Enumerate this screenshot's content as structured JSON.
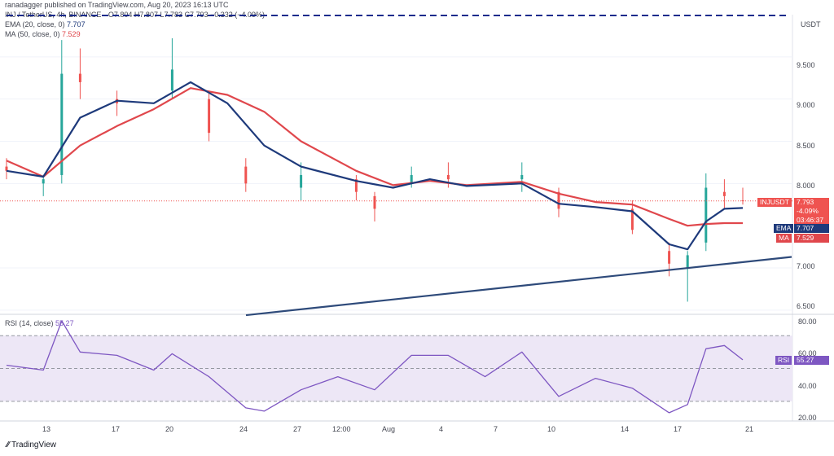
{
  "header": {
    "publisher": "ranadagger published on TradingView.com, Aug 20, 2023 16:13 UTC",
    "symbol_line": "INJ / TetherUS, 4h, BINANCE",
    "ohlc": "O7.804 H7.807 L7.783 C7.793 −0.332 (−4.09%)",
    "ema_label": "EMA (20, close, 0)",
    "ema_value": "7.707",
    "ma_label": "MA (50, close, 0)",
    "ma_value": "7.529",
    "rsi_label": "RSI (14, close)",
    "rsi_value": "55.27"
  },
  "price_axis": {
    "currency": "USDT",
    "ticks": [
      "9.500",
      "9.000",
      "8.500",
      "8.000",
      "7.000",
      "6.500"
    ]
  },
  "rsi_axis": {
    "ticks": [
      "80.00",
      "60.00",
      "40.00",
      "20.00"
    ]
  },
  "time_axis": {
    "ticks": [
      "13",
      "17",
      "20",
      "24",
      "27",
      "12:00",
      "Aug",
      "4",
      "7",
      "10",
      "14",
      "17",
      "21"
    ]
  },
  "tags": {
    "symbol": "INJUSDT",
    "price": "7.793",
    "change": "-4.09%",
    "countdown": "03:46:37",
    "ema_name": "EMA",
    "ema_value": "7.707",
    "ma_name": "MA",
    "ma_value": "7.529",
    "rsi_name": "RSI",
    "rsi_value": "55.27"
  },
  "branding": {
    "logo_text": "TradingView"
  },
  "colors": {
    "up": "#26a69a",
    "down": "#ef5350",
    "ema": "#1e3a7b",
    "ma": "#e0474c",
    "trendline": "#2e4a7a",
    "resistance": "#1a2b8c",
    "rsi": "#7e57c2",
    "rsi_band": "#ede7f6"
  },
  "chart_data": [
    {
      "type": "candlestick",
      "symbol": "INJUSDT",
      "interval": "4h",
      "ylim": [
        6.45,
        10.0
      ],
      "series": [
        {
          "name": "EMA (20, close, 0)",
          "x": [
            "Jul 11",
            "Jul 13",
            "Jul 15",
            "Jul 17",
            "Jul 19",
            "Jul 21",
            "Jul 23",
            "Jul 25",
            "Jul 27",
            "Jul 30",
            "Aug 1",
            "Aug 3",
            "Aug 5",
            "Aug 8",
            "Aug 10",
            "Aug 12",
            "Aug 14",
            "Aug 16",
            "Aug 17",
            "Aug 18",
            "Aug 19",
            "Aug 20"
          ],
          "values": [
            8.15,
            8.08,
            8.78,
            8.98,
            8.95,
            9.2,
            8.95,
            8.45,
            8.2,
            8.03,
            7.95,
            8.05,
            7.97,
            8.0,
            7.76,
            7.72,
            7.67,
            7.28,
            7.22,
            7.55,
            7.7,
            7.71
          ]
        },
        {
          "name": "MA (50, close, 0)",
          "x": [
            "Jul 11",
            "Jul 13",
            "Jul 15",
            "Jul 17",
            "Jul 19",
            "Jul 21",
            "Jul 23",
            "Jul 25",
            "Jul 27",
            "Jul 30",
            "Aug 1",
            "Aug 3",
            "Aug 5",
            "Aug 8",
            "Aug 10",
            "Aug 12",
            "Aug 14",
            "Aug 16",
            "Aug 17",
            "Aug 18",
            "Aug 19",
            "Aug 20"
          ],
          "values": [
            8.27,
            8.08,
            8.45,
            8.68,
            8.88,
            9.13,
            9.05,
            8.85,
            8.5,
            8.15,
            7.98,
            8.03,
            7.98,
            8.02,
            7.88,
            7.78,
            7.75,
            7.58,
            7.5,
            7.52,
            7.53,
            7.53
          ]
        },
        {
          "name": "Trendline",
          "x": [
            "Jul 23",
            "Aug 20"
          ],
          "values": [
            6.44,
            7.13
          ]
        },
        {
          "name": "Resistance",
          "x": [
            "Jul 11",
            "Aug 20"
          ],
          "values": [
            9.99,
            9.99
          ]
        }
      ],
      "ohlc_sample": [
        {
          "x": "Jul 11",
          "o": 8.2,
          "h": 8.3,
          "l": 8.05,
          "c": 8.15
        },
        {
          "x": "Jul 13",
          "o": 8.0,
          "h": 8.1,
          "l": 7.85,
          "c": 8.05
        },
        {
          "x": "Jul 14",
          "o": 8.1,
          "h": 9.7,
          "l": 8.0,
          "c": 9.3
        },
        {
          "x": "Jul 15",
          "o": 9.3,
          "h": 9.6,
          "l": 9.0,
          "c": 9.2
        },
        {
          "x": "Jul 17",
          "o": 9.0,
          "h": 9.1,
          "l": 8.8,
          "c": 8.95
        },
        {
          "x": "Jul 20",
          "o": 9.1,
          "h": 9.72,
          "l": 9.0,
          "c": 9.35
        },
        {
          "x": "Jul 22",
          "o": 9.0,
          "h": 9.1,
          "l": 8.5,
          "c": 8.6
        },
        {
          "x": "Jul 24",
          "o": 8.2,
          "h": 8.3,
          "l": 7.9,
          "c": 8.0
        },
        {
          "x": "Jul 27",
          "o": 7.95,
          "h": 8.25,
          "l": 7.8,
          "c": 8.1
        },
        {
          "x": "Jul 30",
          "o": 8.05,
          "h": 8.1,
          "l": 7.8,
          "c": 7.9
        },
        {
          "x": "Jul 31",
          "o": 7.85,
          "h": 7.9,
          "l": 7.55,
          "c": 7.7
        },
        {
          "x": "Aug 2",
          "o": 8.0,
          "h": 8.2,
          "l": 7.95,
          "c": 8.1
        },
        {
          "x": "Aug 4",
          "o": 8.1,
          "h": 8.25,
          "l": 7.95,
          "c": 8.05
        },
        {
          "x": "Aug 8",
          "o": 8.05,
          "h": 8.25,
          "l": 7.9,
          "c": 8.1
        },
        {
          "x": "Aug 10",
          "o": 7.9,
          "h": 7.95,
          "l": 7.6,
          "c": 7.7
        },
        {
          "x": "Aug 14",
          "o": 7.7,
          "h": 7.8,
          "l": 7.4,
          "c": 7.45
        },
        {
          "x": "Aug 16",
          "o": 7.2,
          "h": 7.3,
          "l": 6.9,
          "c": 7.05
        },
        {
          "x": "Aug 17",
          "o": 7.0,
          "h": 7.2,
          "l": 6.6,
          "c": 7.15
        },
        {
          "x": "Aug 18",
          "o": 7.3,
          "h": 8.12,
          "l": 7.2,
          "c": 7.95
        },
        {
          "x": "Aug 19",
          "o": 7.9,
          "h": 8.05,
          "l": 7.7,
          "c": 7.85
        },
        {
          "x": "Aug 20",
          "o": 7.8,
          "h": 7.95,
          "l": 7.75,
          "c": 7.793
        }
      ]
    },
    {
      "type": "line",
      "title": "RSI (14, close)",
      "ylim": [
        18,
        82
      ],
      "band": [
        30,
        70
      ],
      "x": [
        "Jul 11",
        "Jul 13",
        "Jul 14",
        "Jul 15",
        "Jul 17",
        "Jul 19",
        "Jul 20",
        "Jul 22",
        "Jul 24",
        "Jul 25",
        "Jul 27",
        "Jul 29",
        "Jul 31",
        "Aug 2",
        "Aug 4",
        "Aug 6",
        "Aug 8",
        "Aug 10",
        "Aug 12",
        "Aug 14",
        "Aug 16",
        "Aug 17",
        "Aug 18",
        "Aug 19",
        "Aug 20"
      ],
      "series": [
        {
          "name": "RSI (14, close)",
          "values": [
            52,
            49,
            79,
            60,
            58,
            49,
            59,
            45,
            26,
            24,
            37,
            45,
            37,
            58,
            58,
            45,
            60,
            33,
            44,
            38,
            23,
            28,
            62,
            64,
            55.27
          ]
        }
      ]
    }
  ]
}
